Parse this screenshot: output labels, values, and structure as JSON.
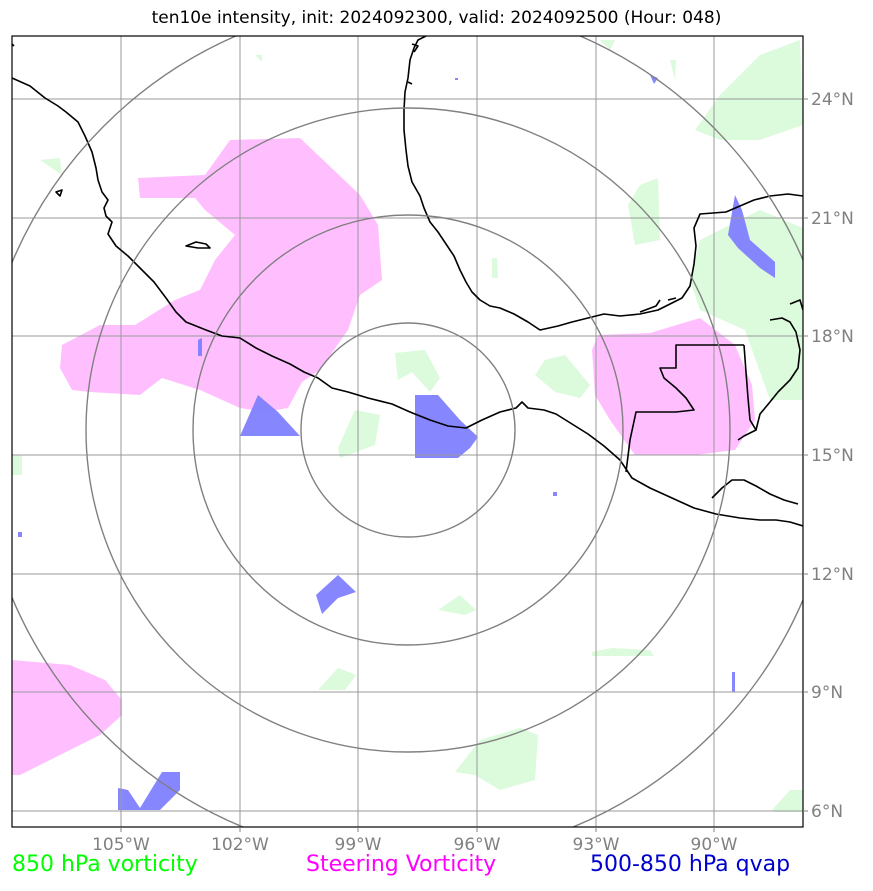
{
  "title": "ten10e intensity, init: 2024092300, valid: 2024092500 (Hour: 048)",
  "map": {
    "lon_labels": [
      "105°W",
      "102°W",
      "99°W",
      "96°W",
      "93°W",
      "90°W"
    ],
    "lat_labels": [
      "24°N",
      "21°N",
      "18°N",
      "15°N",
      "12°N",
      "9°N",
      "6°N"
    ],
    "lon_values": [
      -105,
      -102,
      -99,
      -96,
      -93,
      -90
    ],
    "lat_values": [
      24,
      21,
      18,
      15,
      12,
      9,
      6
    ],
    "center": {
      "lon": -97.7,
      "lat": 15.7
    },
    "ring_radii_deg": [
      2.7,
      5.3,
      8.0,
      10.6
    ]
  },
  "legend": [
    {
      "label": "850 hPa vorticity",
      "color": "#00ff00"
    },
    {
      "label": "Steering Vorticity",
      "color": "#ff00ff"
    },
    {
      "label": "500-850 hPa qvap",
      "color": "#0000cc"
    }
  ],
  "colors": {
    "vorticity_fill": "#dcfadc",
    "steering_fill": "#ffbfff",
    "qvap_fill": "#7f80ff",
    "grid": "#999999",
    "ring": "#808080"
  }
}
